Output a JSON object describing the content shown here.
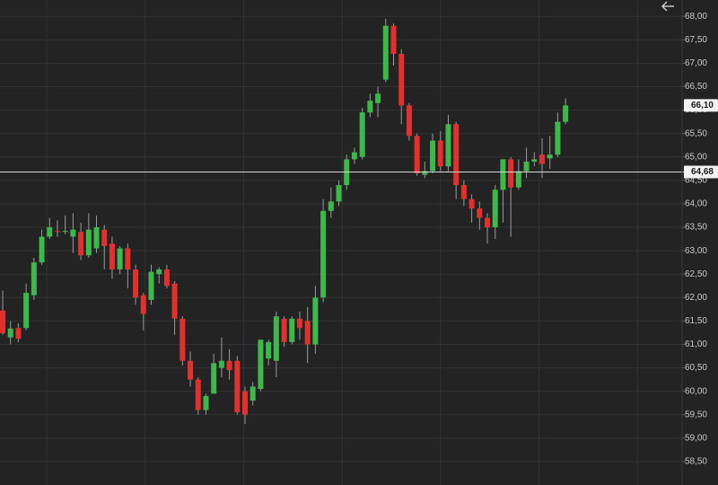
{
  "chart_data": {
    "type": "candlestick",
    "colors": {
      "up": "#3db84b",
      "down": "#e2302f"
    },
    "ylim": [
      58.0,
      68.35
    ],
    "yticks": [
      {
        "value": 58.5,
        "label": "58,50"
      },
      {
        "value": 59.0,
        "label": "59,00"
      },
      {
        "value": 59.5,
        "label": "59,50"
      },
      {
        "value": 60.0,
        "label": "60,00"
      },
      {
        "value": 60.5,
        "label": "60,50"
      },
      {
        "value": 61.0,
        "label": "61,00"
      },
      {
        "value": 61.5,
        "label": "61,50"
      },
      {
        "value": 62.0,
        "label": "62,00"
      },
      {
        "value": 62.5,
        "label": "62,50"
      },
      {
        "value": 63.0,
        "label": "63,00"
      },
      {
        "value": 63.5,
        "label": "63,50"
      },
      {
        "value": 64.0,
        "label": "64,00"
      },
      {
        "value": 64.5,
        "label": "64,50"
      },
      {
        "value": 65.0,
        "label": "65,00"
      },
      {
        "value": 65.5,
        "label": "65,50"
      },
      {
        "value": 66.0,
        "label": "66,00"
      },
      {
        "value": 66.5,
        "label": "66,50"
      },
      {
        "value": 67.0,
        "label": "67,00"
      },
      {
        "value": 67.5,
        "label": "67,50"
      },
      {
        "value": 68.0,
        "label": "68,00"
      }
    ],
    "grid": true,
    "last_price": {
      "value": 66.1,
      "label": "66,10"
    },
    "crosshair": {
      "value": 64.68,
      "label": "64,68"
    },
    "open": [
      61.72,
      61.15,
      61.35,
      61.35,
      62.05,
      62.75,
      63.3,
      63.42,
      63.4,
      63.3,
      63.4,
      62.9,
      63.05,
      63.45,
      63.15,
      62.6,
      63.05,
      62.6,
      62.05,
      61.95,
      62.5,
      62.6,
      62.3,
      61.55,
      60.65,
      60.25,
      59.6,
      59.95,
      60.5,
      60.65,
      60.65,
      60.0,
      59.8,
      60.05,
      60.7,
      60.65,
      61.55,
      61.05,
      61.55,
      61.5,
      61.0,
      62.0,
      63.85,
      64.05,
      64.4,
      64.95,
      65.0,
      65.95,
      66.15,
      66.65,
      67.8,
      67.2,
      66.1,
      65.45,
      64.62,
      64.7,
      65.35,
      64.8,
      65.7,
      64.4,
      64.1,
      63.9,
      63.7,
      63.5,
      64.3,
      64.95,
      64.35,
      64.7,
      64.9,
      65.05,
      64.97,
      65.05,
      65.75
    ],
    "high": [
      62.15,
      61.5,
      61.45,
      62.3,
      62.85,
      63.45,
      63.7,
      63.65,
      63.75,
      63.8,
      63.6,
      63.8,
      63.75,
      63.55,
      63.3,
      63.1,
      63.15,
      62.7,
      62.1,
      62.7,
      62.65,
      62.7,
      62.35,
      61.6,
      60.85,
      60.3,
      59.95,
      60.8,
      61.15,
      60.9,
      60.75,
      60.1,
      60.2,
      61.1,
      61.1,
      61.7,
      61.6,
      61.6,
      61.7,
      61.8,
      62.25,
      64.1,
      64.35,
      64.5,
      65.05,
      65.2,
      66.05,
      66.35,
      66.5,
      67.95,
      67.85,
      67.3,
      66.15,
      65.5,
      64.9,
      65.5,
      65.55,
      65.9,
      65.75,
      64.5,
      64.2,
      64.05,
      63.8,
      64.4,
      64.95,
      65.0,
      64.95,
      65.2,
      65.1,
      65.4,
      65.45,
      65.95,
      66.25
    ],
    "low": [
      61.2,
      61.0,
      61.05,
      61.3,
      61.95,
      62.7,
      63.25,
      63.3,
      63.35,
      62.95,
      62.8,
      62.85,
      62.95,
      62.6,
      62.4,
      62.5,
      62.2,
      61.85,
      61.3,
      61.85,
      62.3,
      62.2,
      61.2,
      60.55,
      60.1,
      59.5,
      59.5,
      59.95,
      60.3,
      60.25,
      59.5,
      59.3,
      59.7,
      60.0,
      60.55,
      60.3,
      60.95,
      61.0,
      61.1,
      60.6,
      60.8,
      61.9,
      63.7,
      63.95,
      64.3,
      64.85,
      64.95,
      65.85,
      65.85,
      66.6,
      66.95,
      65.7,
      65.35,
      64.6,
      64.55,
      64.65,
      64.7,
      64.7,
      64.1,
      63.95,
      63.6,
      63.45,
      63.15,
      63.25,
      63.6,
      63.3,
      64.3,
      64.55,
      64.8,
      64.55,
      64.75,
      65.0,
      65.7
    ],
    "close": [
      61.24,
      61.34,
      61.12,
      62.1,
      62.75,
      63.3,
      63.5,
      63.4,
      63.42,
      63.45,
      62.9,
      63.45,
      63.5,
      63.1,
      62.6,
      63.05,
      62.6,
      62.0,
      61.65,
      62.55,
      62.6,
      62.25,
      61.55,
      60.65,
      60.25,
      59.6,
      59.9,
      60.6,
      60.65,
      60.45,
      59.55,
      59.5,
      60.1,
      61.1,
      61.05,
      61.6,
      61.05,
      61.55,
      61.35,
      61.0,
      62.0,
      63.85,
      64.05,
      64.4,
      64.95,
      65.1,
      65.95,
      66.2,
      66.35,
      67.8,
      67.2,
      66.1,
      65.45,
      64.65,
      64.7,
      65.35,
      64.8,
      65.7,
      64.4,
      64.1,
      63.9,
      63.7,
      63.5,
      64.3,
      64.95,
      64.35,
      64.7,
      64.9,
      64.95,
      64.85,
      65.05,
      65.75,
      66.1
    ]
  }
}
